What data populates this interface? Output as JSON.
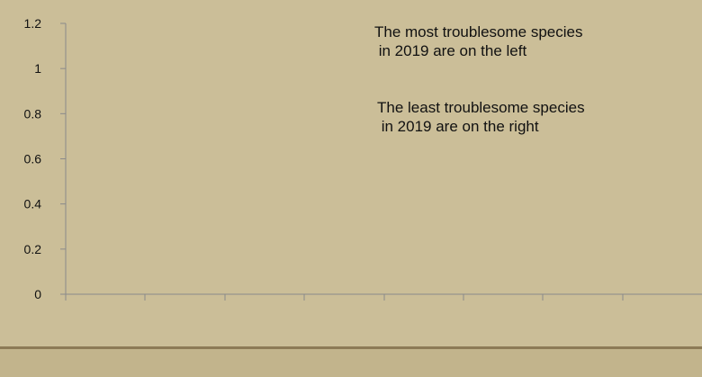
{
  "chart_data": {
    "type": "bar",
    "title": "",
    "xlabel": "",
    "ylabel": "",
    "ylim": [
      0,
      1.2
    ],
    "yticks": [
      0,
      0.2,
      0.4,
      0.6,
      0.8,
      1,
      1.2
    ],
    "ytick_labels": [
      "0",
      "0.2",
      "0.4",
      "0.6",
      "0.8",
      "1",
      "1.2"
    ],
    "categories": [
      "",
      "",
      "",
      "",
      "",
      "",
      "",
      ""
    ],
    "series": [],
    "grid": false,
    "annotations": [
      "The most troublesome species\n in 2019 are on the left",
      "The least troublesome species\n in 2019 are on the right"
    ]
  },
  "colors": {
    "background": "#cbbe98",
    "axis": "#8a8a8a",
    "text": "#111111",
    "bottom_band": "#c2b48c",
    "bottom_band_border": "#8c7a56"
  }
}
